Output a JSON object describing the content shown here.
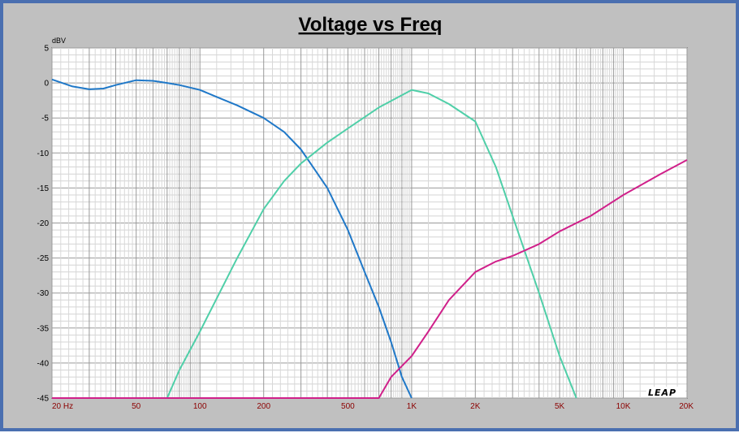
{
  "chart_data": {
    "type": "line",
    "title": "Voltage vs Freq",
    "ylabel": "dBV",
    "xlabel": "",
    "x_scale": "log",
    "xlim": [
      20,
      20000
    ],
    "ylim": [
      -45,
      5
    ],
    "grid": true,
    "y_ticks": [
      "5",
      "0",
      "-5",
      "-10",
      "-15",
      "-20",
      "-25",
      "-30",
      "-35",
      "-40",
      "-45"
    ],
    "x_ticks": [
      {
        "value": 20,
        "label": "20  Hz"
      },
      {
        "value": 50,
        "label": "50"
      },
      {
        "value": 100,
        "label": "100"
      },
      {
        "value": 200,
        "label": "200"
      },
      {
        "value": 500,
        "label": "500"
      },
      {
        "value": 1000,
        "label": "1K"
      },
      {
        "value": 2000,
        "label": "2K"
      },
      {
        "value": 5000,
        "label": "5K"
      },
      {
        "value": 10000,
        "label": "10K"
      },
      {
        "value": 20000,
        "label": "20K"
      }
    ],
    "watermark": "LEAP",
    "series": [
      {
        "color": "#1f78c8",
        "points": [
          [
            20,
            0.5
          ],
          [
            25,
            -0.5
          ],
          [
            30,
            -0.9
          ],
          [
            35,
            -0.8
          ],
          [
            40,
            -0.3
          ],
          [
            50,
            0.4
          ],
          [
            60,
            0.3
          ],
          [
            70,
            0
          ],
          [
            80,
            -0.3
          ],
          [
            100,
            -1
          ],
          [
            120,
            -2
          ],
          [
            150,
            -3.2
          ],
          [
            200,
            -5
          ],
          [
            250,
            -7
          ],
          [
            300,
            -9.5
          ],
          [
            400,
            -15
          ],
          [
            500,
            -21
          ],
          [
            600,
            -27
          ],
          [
            700,
            -32
          ],
          [
            800,
            -37
          ],
          [
            900,
            -42
          ],
          [
            1000,
            -45
          ]
        ]
      },
      {
        "color": "#4fcfa8",
        "points": [
          [
            70,
            -45
          ],
          [
            80,
            -41
          ],
          [
            100,
            -35.5
          ],
          [
            150,
            -25
          ],
          [
            200,
            -18
          ],
          [
            250,
            -14
          ],
          [
            300,
            -11.5
          ],
          [
            400,
            -8.5
          ],
          [
            500,
            -6.5
          ],
          [
            700,
            -3.5
          ],
          [
            1000,
            -1
          ],
          [
            1200,
            -1.5
          ],
          [
            1500,
            -3
          ],
          [
            2000,
            -5.5
          ],
          [
            2500,
            -12
          ],
          [
            3000,
            -19
          ],
          [
            4000,
            -30
          ],
          [
            5000,
            -39
          ],
          [
            6000,
            -45
          ]
        ]
      },
      {
        "color": "#d0208a",
        "points": [
          [
            20,
            -45
          ],
          [
            700,
            -45
          ],
          [
            800,
            -42
          ],
          [
            1000,
            -39
          ],
          [
            1200,
            -35.5
          ],
          [
            1500,
            -31
          ],
          [
            2000,
            -27
          ],
          [
            2500,
            -25.5
          ],
          [
            3000,
            -24.7
          ],
          [
            4000,
            -23
          ],
          [
            5000,
            -21.2
          ],
          [
            7000,
            -19
          ],
          [
            10000,
            -16
          ],
          [
            15000,
            -13
          ],
          [
            20000,
            -11
          ]
        ]
      }
    ]
  }
}
